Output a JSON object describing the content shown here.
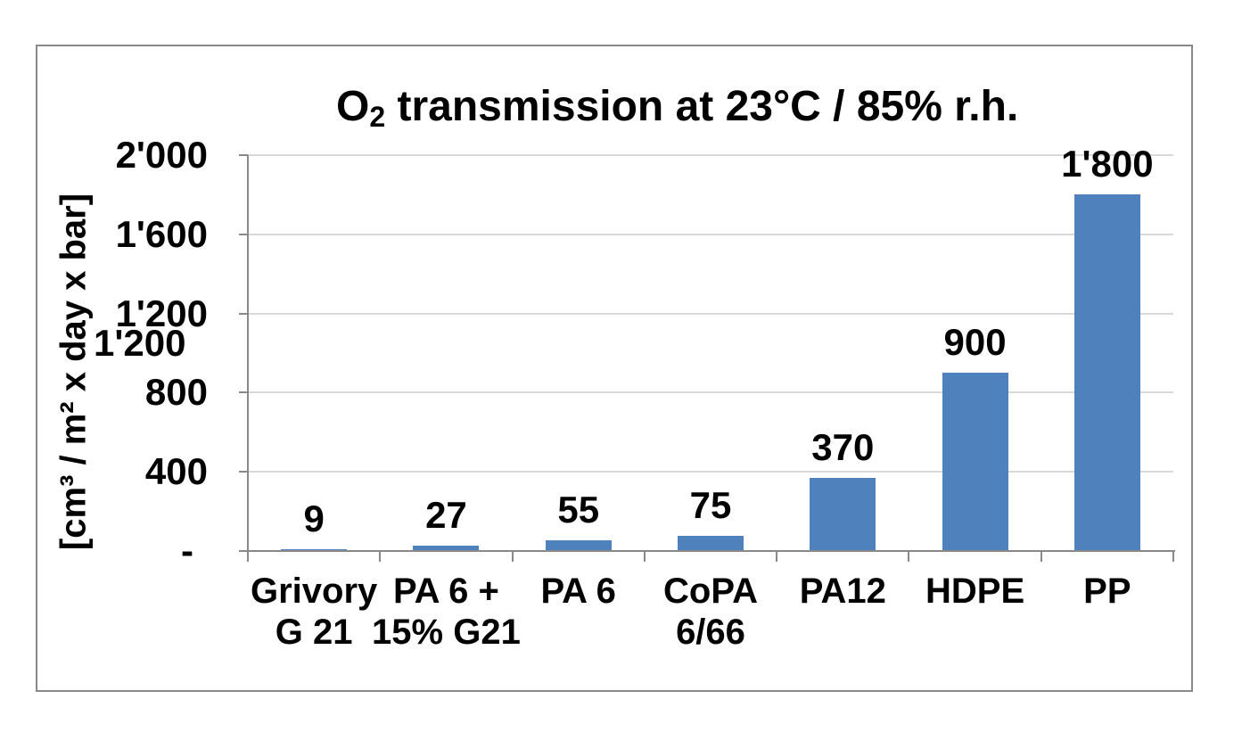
{
  "title": {
    "prefix": "O",
    "subscript": "2",
    "rest": " transmission at 23°C / 85% r.h."
  },
  "y_axis": {
    "title": "[cm³ / m² x day x bar]",
    "stray_duplicate_label": "1'200"
  },
  "chart_data": {
    "type": "bar",
    "title": "O₂ transmission at 23°C / 85% r.h.",
    "ylabel": "[cm³ / m² x day x bar]",
    "xlabel": "",
    "categories": [
      "Grivory G 21",
      "PA 6 + 15% G21",
      "PA 6",
      "CoPA 6/66",
      "PA12",
      "HDPE",
      "PP"
    ],
    "category_label_lines": [
      [
        "Grivory",
        "G 21"
      ],
      [
        "PA 6 +",
        "15% G21"
      ],
      [
        "PA 6"
      ],
      [
        "CoPA",
        "6/66"
      ],
      [
        "PA12"
      ],
      [
        "HDPE"
      ],
      [
        "PP"
      ]
    ],
    "values": [
      9,
      27,
      55,
      75,
      370,
      900,
      1800
    ],
    "value_labels": [
      "9",
      "27",
      "55",
      "75",
      "370",
      "900",
      "1'800"
    ],
    "ylim": [
      0,
      2000
    ],
    "ytick_values": [
      0,
      400,
      800,
      1200,
      1600,
      2000
    ],
    "ytick_labels": [
      "-",
      "400",
      "800",
      "1'200",
      "1'600",
      "2'000"
    ],
    "grid": true,
    "legend": false,
    "bar_color": "#4f81bd"
  },
  "colors": {
    "bar": "#4f81bd",
    "gridline": "#d9d9d9",
    "axis": "#898989",
    "frame_border": "#898989",
    "text": "#000000",
    "background": "#ffffff"
  }
}
